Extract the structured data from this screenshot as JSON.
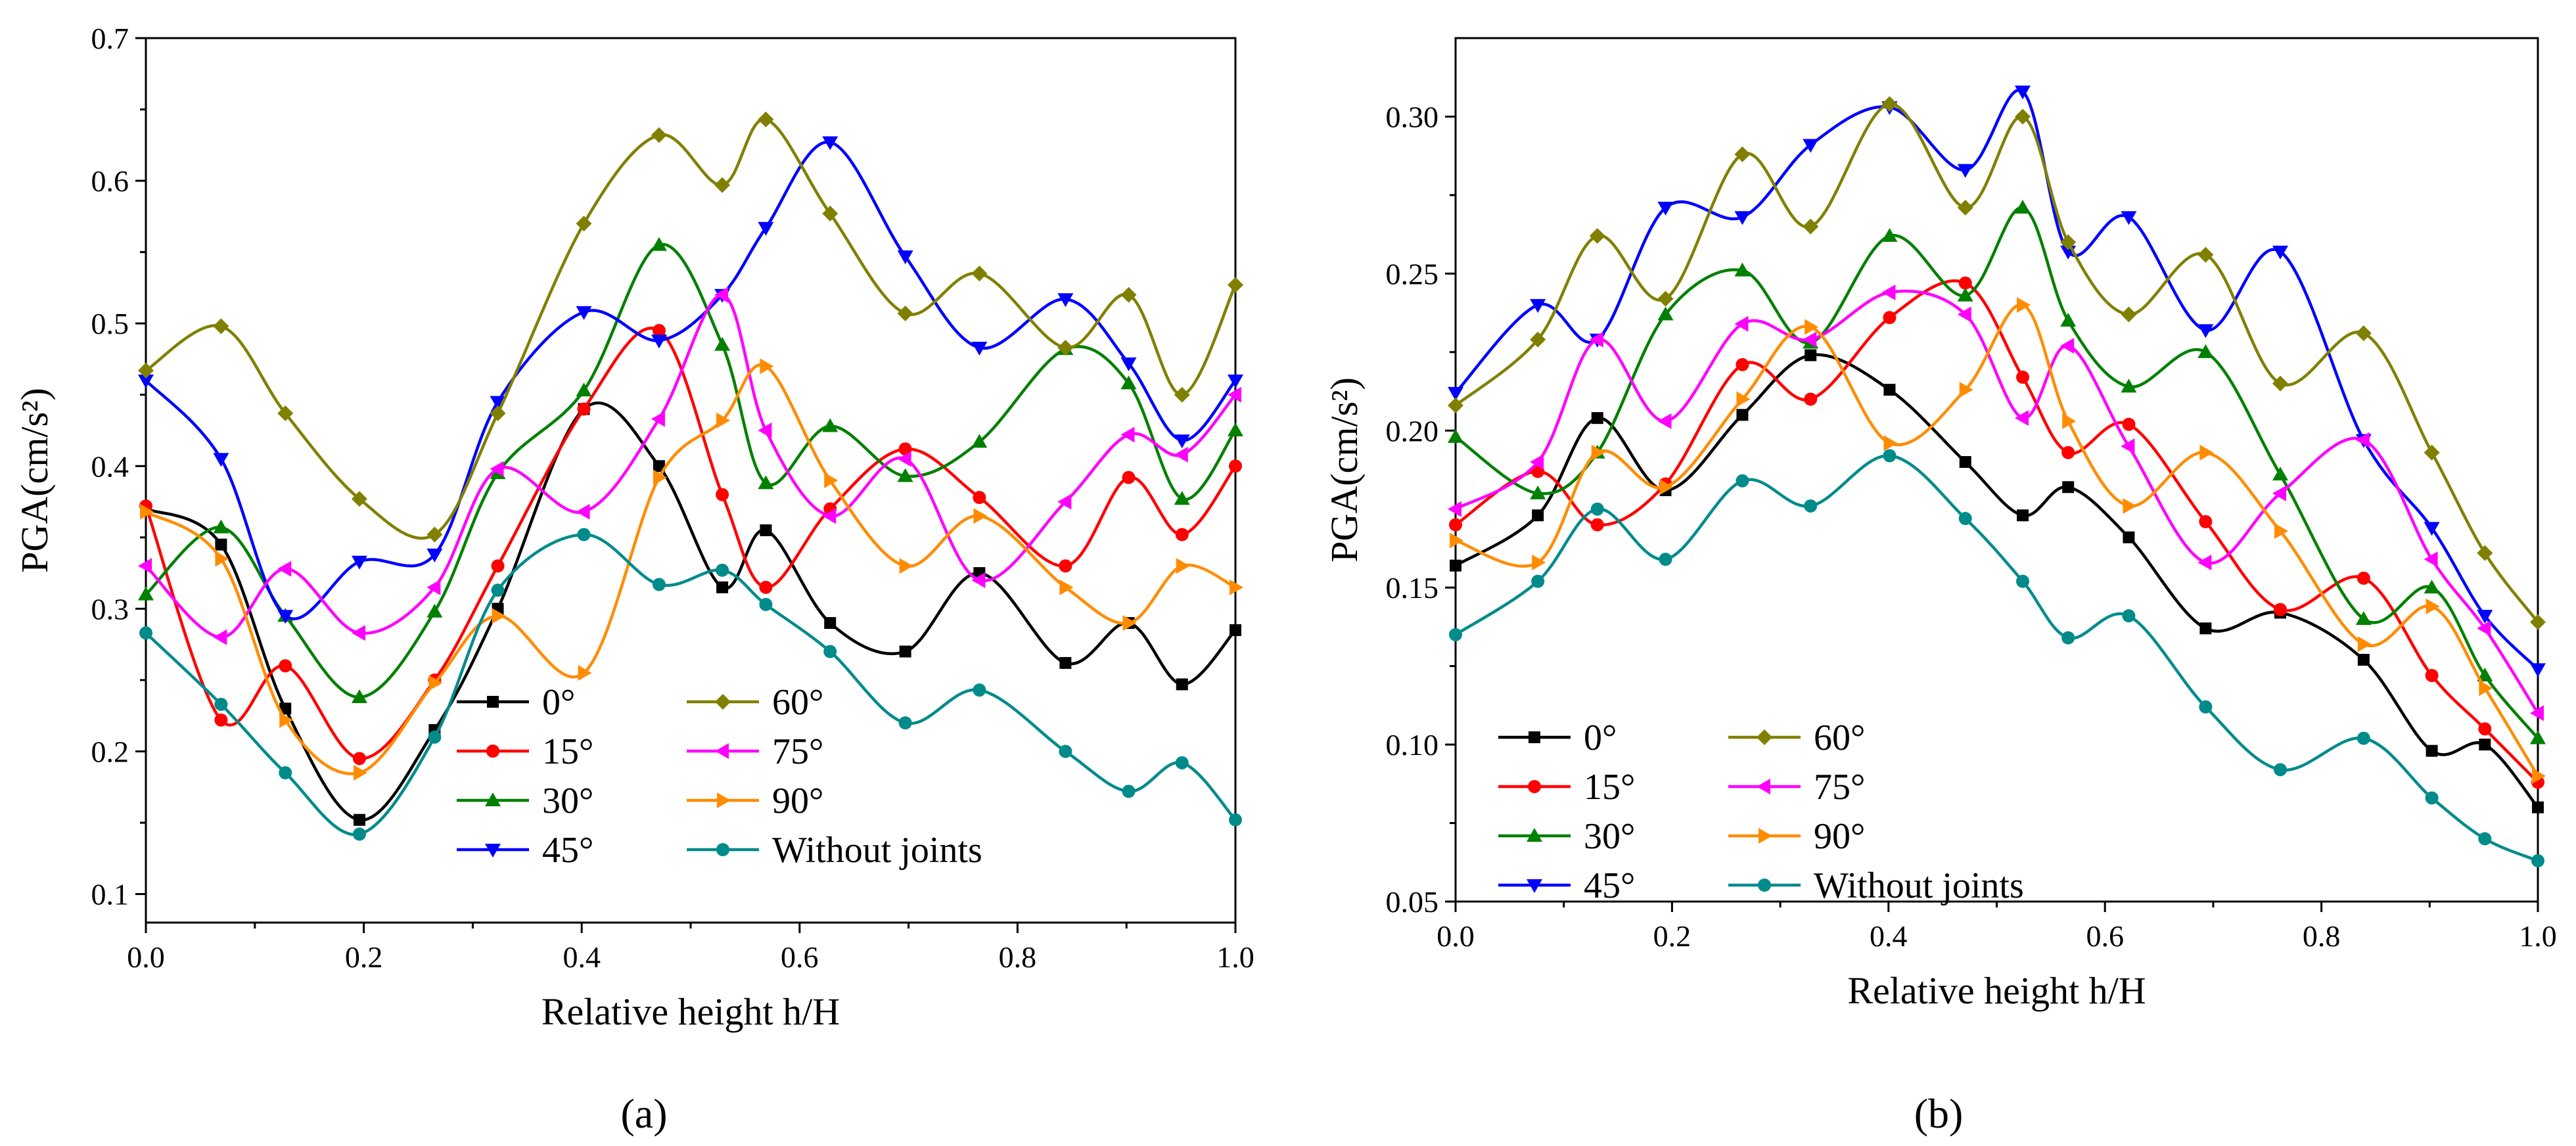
{
  "figure": {
    "panel_labels": [
      "(a)",
      "(b)"
    ]
  },
  "chart_data": [
    {
      "type": "line",
      "panel": "(a)",
      "title": "",
      "xlabel": "Relative height h/H",
      "ylabel": "PGA(cm/s²)",
      "xlim": [
        0.0,
        1.0
      ],
      "ylim": [
        0.08,
        0.7
      ],
      "xticks": [
        0.0,
        0.2,
        0.4,
        0.6,
        0.8,
        1.0
      ],
      "xtick_labels": [
        "0.0",
        "0.2",
        "0.4",
        "0.6",
        "0.8",
        "1.0"
      ],
      "yticks": [
        0.1,
        0.2,
        0.3,
        0.4,
        0.5,
        0.6,
        0.7
      ],
      "ytick_labels": [
        "0.1",
        "0.2",
        "0.3",
        "0.4",
        "0.5",
        "0.6",
        "0.7"
      ],
      "legend": {
        "placement": "bottom-center",
        "columns": 2
      },
      "x": [
        0.0,
        0.069,
        0.128,
        0.196,
        0.265,
        0.323,
        0.402,
        0.471,
        0.529,
        0.569,
        0.628,
        0.697,
        0.765,
        0.844,
        0.902,
        0.951,
        1.0
      ],
      "series": [
        {
          "name": "0°",
          "color": "#000000",
          "marker": "square",
          "values": [
            0.37,
            0.345,
            0.23,
            0.152,
            0.215,
            0.3,
            0.44,
            0.4,
            0.315,
            0.355,
            0.29,
            0.27,
            0.325,
            0.262,
            0.29,
            0.247,
            0.285
          ]
        },
        {
          "name": "15°",
          "color": "#ff0000",
          "marker": "circle",
          "values": [
            0.372,
            0.222,
            0.26,
            0.195,
            0.25,
            0.33,
            0.44,
            0.495,
            0.38,
            0.315,
            0.37,
            0.412,
            0.378,
            0.33,
            0.392,
            0.352,
            0.4
          ]
        },
        {
          "name": "30°",
          "color": "#008000",
          "marker": "triangle-up",
          "values": [
            0.31,
            0.357,
            0.295,
            0.238,
            0.298,
            0.395,
            0.453,
            0.555,
            0.485,
            0.388,
            0.428,
            0.393,
            0.417,
            0.482,
            0.458,
            0.377,
            0.425
          ]
        },
        {
          "name": "45°",
          "color": "#0000ff",
          "marker": "triangle-down",
          "values": [
            0.46,
            0.405,
            0.295,
            0.333,
            0.338,
            0.445,
            0.508,
            0.488,
            0.52,
            0.567,
            0.627,
            0.547,
            0.483,
            0.517,
            0.472,
            0.418,
            0.46
          ]
        },
        {
          "name": "60°",
          "color": "#808000",
          "marker": "diamond",
          "values": [
            0.467,
            0.498,
            0.437,
            0.377,
            0.352,
            0.437,
            0.57,
            0.632,
            0.597,
            0.643,
            0.577,
            0.507,
            0.535,
            0.483,
            0.52,
            0.45,
            0.527
          ]
        },
        {
          "name": "75°",
          "color": "#ff00ff",
          "marker": "triangle-left",
          "values": [
            0.33,
            0.28,
            0.328,
            0.283,
            0.315,
            0.398,
            0.368,
            0.433,
            0.52,
            0.425,
            0.365,
            0.405,
            0.32,
            0.375,
            0.422,
            0.408,
            0.45
          ]
        },
        {
          "name": "90°",
          "color": "#ff8c00",
          "marker": "triangle-right",
          "values": [
            0.368,
            0.335,
            0.222,
            0.185,
            0.248,
            0.295,
            0.255,
            0.392,
            0.432,
            0.47,
            0.39,
            0.33,
            0.365,
            0.315,
            0.29,
            0.33,
            0.315
          ]
        },
        {
          "name": "Without joints",
          "color": "#008b8b",
          "marker": "circle",
          "values": [
            0.283,
            0.233,
            0.185,
            0.142,
            0.21,
            0.313,
            0.352,
            0.317,
            0.327,
            0.303,
            0.27,
            0.22,
            0.243,
            0.2,
            0.172,
            0.192,
            0.152
          ]
        }
      ]
    },
    {
      "type": "line",
      "panel": "(b)",
      "title": "",
      "xlabel": "Relative height h/H",
      "ylabel": "PGA(cm/s²)",
      "xlim": [
        0.0,
        1.0
      ],
      "ylim": [
        0.05,
        0.325
      ],
      "xticks": [
        0.0,
        0.2,
        0.4,
        0.6,
        0.8,
        1.0
      ],
      "xtick_labels": [
        "0.0",
        "0.2",
        "0.4",
        "0.6",
        "0.8",
        "1.0"
      ],
      "yticks": [
        0.05,
        0.1,
        0.15,
        0.2,
        0.25,
        0.3
      ],
      "ytick_labels": [
        "0.05",
        "0.10",
        "0.15",
        "0.20",
        "0.25",
        "0.30"
      ],
      "legend": {
        "placement": "bottom-left",
        "columns": 2
      },
      "x": [
        0.0,
        0.076,
        0.131,
        0.194,
        0.265,
        0.328,
        0.401,
        0.471,
        0.524,
        0.566,
        0.622,
        0.693,
        0.762,
        0.839,
        0.902,
        0.951,
        1.0
      ],
      "series": [
        {
          "name": "0°",
          "color": "#000000",
          "marker": "square",
          "values": [
            0.157,
            0.173,
            0.204,
            0.181,
            0.205,
            0.224,
            0.213,
            0.19,
            0.173,
            0.182,
            0.166,
            0.137,
            0.142,
            0.127,
            0.098,
            0.1,
            0.08
          ]
        },
        {
          "name": "15°",
          "color": "#ff0000",
          "marker": "circle",
          "values": [
            0.17,
            0.187,
            0.17,
            0.183,
            0.221,
            0.21,
            0.236,
            0.247,
            0.217,
            0.193,
            0.202,
            0.171,
            0.143,
            0.153,
            0.122,
            0.105,
            0.088
          ]
        },
        {
          "name": "30°",
          "color": "#008000",
          "marker": "triangle-up",
          "values": [
            0.198,
            0.18,
            0.193,
            0.237,
            0.251,
            0.228,
            0.262,
            0.243,
            0.271,
            0.235,
            0.214,
            0.225,
            0.186,
            0.14,
            0.15,
            0.122,
            0.102
          ]
        },
        {
          "name": "45°",
          "color": "#0000ff",
          "marker": "triangle-down",
          "values": [
            0.212,
            0.24,
            0.229,
            0.271,
            0.268,
            0.291,
            0.303,
            0.283,
            0.308,
            0.257,
            0.268,
            0.232,
            0.257,
            0.197,
            0.169,
            0.141,
            0.124
          ]
        },
        {
          "name": "60°",
          "color": "#808000",
          "marker": "diamond",
          "values": [
            0.208,
            0.229,
            0.262,
            0.242,
            0.288,
            0.265,
            0.304,
            0.271,
            0.3,
            0.26,
            0.237,
            0.256,
            0.215,
            0.231,
            0.193,
            0.161,
            0.139
          ]
        },
        {
          "name": "75°",
          "color": "#ff00ff",
          "marker": "triangle-left",
          "values": [
            0.175,
            0.19,
            0.229,
            0.203,
            0.234,
            0.229,
            0.244,
            0.237,
            0.204,
            0.227,
            0.195,
            0.158,
            0.18,
            0.197,
            0.159,
            0.137,
            0.11
          ]
        },
        {
          "name": "90°",
          "color": "#ff8c00",
          "marker": "triangle-right",
          "values": [
            0.165,
            0.158,
            0.193,
            0.182,
            0.21,
            0.233,
            0.196,
            0.213,
            0.24,
            0.203,
            0.176,
            0.193,
            0.168,
            0.132,
            0.144,
            0.118,
            0.09
          ]
        },
        {
          "name": "Without joints",
          "color": "#008b8b",
          "marker": "circle",
          "values": [
            0.135,
            0.152,
            0.175,
            0.159,
            0.184,
            0.176,
            0.192,
            0.172,
            0.152,
            0.134,
            0.141,
            0.112,
            0.092,
            0.102,
            0.083,
            0.07,
            0.063
          ]
        }
      ]
    }
  ]
}
